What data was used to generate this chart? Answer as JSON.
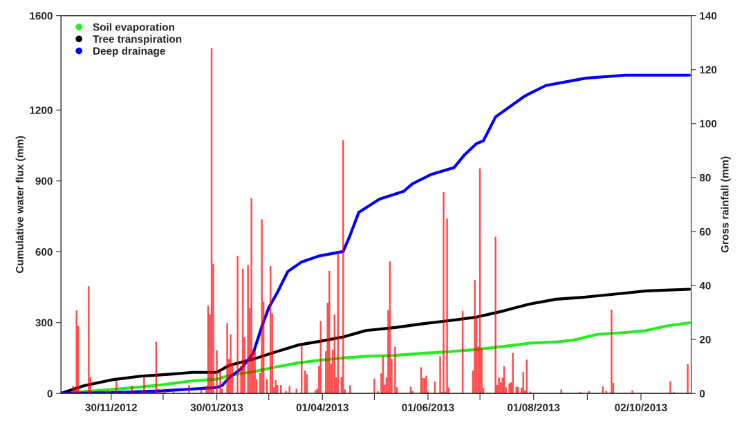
{
  "chart_data": {
    "type": "line",
    "xlabel": null,
    "ylabel": "Cumulative water flux (mm)",
    "y2label": "Gross rainfall (mm)",
    "xlim": [
      "2012-11-01",
      "2013-10-31"
    ],
    "xticks": [
      {
        "value": "2012-11-30",
        "label": "30/11/2012"
      },
      {
        "value": "2012-12-30",
        "label": null
      },
      {
        "value": "2013-01-30",
        "label": "30/01/2013"
      },
      {
        "value": "2013-03-01",
        "label": null
      },
      {
        "value": "2013-04-01",
        "label": "01/04/2013"
      },
      {
        "value": "2013-05-01",
        "label": null
      },
      {
        "value": "2013-06-01",
        "label": "01/06/2013"
      },
      {
        "value": "2013-07-01",
        "label": null
      },
      {
        "value": "2013-08-01",
        "label": "01/08/2013"
      },
      {
        "value": "2013-09-01",
        "label": null
      },
      {
        "value": "2013-10-02",
        "label": "02/10/2013"
      }
    ],
    "ylim": [
      0,
      1600
    ],
    "yticks": [
      0,
      300,
      600,
      900,
      1200,
      1600
    ],
    "y2lim": [
      0,
      140
    ],
    "y2ticks": [
      0,
      20,
      40,
      60,
      80,
      100,
      120,
      140
    ],
    "legend": "top left",
    "grid": false,
    "series": [
      {
        "name": "Soil evaporation",
        "color": "#22ee22",
        "x": [
          "2012-11-01",
          "2012-11-30",
          "2012-12-17",
          "2012-12-30",
          "2013-01-16",
          "2013-01-30",
          "2013-02-06",
          "2013-02-20",
          "2013-03-06",
          "2013-03-18",
          "2013-03-31",
          "2013-04-13",
          "2013-04-26",
          "2013-05-13",
          "2013-05-29",
          "2013-06-12",
          "2013-06-29",
          "2013-07-15",
          "2013-07-30",
          "2013-08-14",
          "2013-08-24",
          "2013-09-07",
          "2013-09-23",
          "2013-10-05",
          "2013-10-17",
          "2013-10-30"
        ],
        "values": [
          0,
          16,
          27,
          37,
          53,
          60,
          76,
          92,
          113,
          129,
          141,
          150,
          157,
          161,
          170,
          176,
          186,
          199,
          213,
          218,
          226,
          250,
          258,
          266,
          286,
          299
        ]
      },
      {
        "name": "Tree transpiration",
        "color": "#000000",
        "x": [
          "2012-11-01",
          "2012-11-14",
          "2012-11-30",
          "2012-12-17",
          "2012-12-30",
          "2013-01-16",
          "2013-01-30",
          "2013-02-06",
          "2013-02-20",
          "2013-03-06",
          "2013-03-18",
          "2013-03-31",
          "2013-04-13",
          "2013-04-26",
          "2013-05-13",
          "2013-05-29",
          "2013-06-12",
          "2013-06-29",
          "2013-07-15",
          "2013-07-30",
          "2013-08-14",
          "2013-08-31",
          "2013-09-23",
          "2013-10-05",
          "2013-10-30"
        ],
        "values": [
          0,
          32,
          57,
          73,
          79,
          89,
          89,
          118,
          145,
          178,
          205,
          221,
          239,
          266,
          279,
          295,
          307,
          323,
          350,
          379,
          399,
          408,
          425,
          434,
          441
        ]
      },
      {
        "name": "Deep drainage",
        "color": "#0000ff",
        "x": [
          "2012-11-01",
          "2012-11-30",
          "2012-12-30",
          "2013-01-30",
          "2013-02-02",
          "2013-02-06",
          "2013-02-13",
          "2013-02-20",
          "2013-02-25",
          "2013-03-01",
          "2013-03-06",
          "2013-03-12",
          "2013-03-20",
          "2013-03-30",
          "2013-04-13",
          "2013-04-17",
          "2013-04-22",
          "2013-05-04",
          "2013-05-18",
          "2013-05-23",
          "2013-06-03",
          "2013-06-16",
          "2013-06-22",
          "2013-06-29",
          "2013-07-03",
          "2013-07-10",
          "2013-07-27",
          "2013-08-08",
          "2013-08-31",
          "2013-09-23",
          "2013-10-30"
        ],
        "values": [
          0,
          3,
          11,
          25,
          33,
          65,
          104,
          170,
          283,
          363,
          428,
          516,
          557,
          582,
          601,
          670,
          767,
          823,
          856,
          888,
          928,
          956,
          1010,
          1058,
          1070,
          1171,
          1260,
          1304,
          1335,
          1348,
          1348
        ]
      },
      {
        "type": "bar",
        "axis": "y2",
        "color": "#ff0000",
        "x": [
          "2012-11-08",
          "2012-11-09",
          "2012-11-10",
          "2012-11-11",
          "2012-11-17",
          "2012-11-18",
          "2012-11-28",
          "2012-12-03",
          "2012-12-07",
          "2012-12-12",
          "2012-12-18",
          "2012-12-19",
          "2012-12-26",
          "2012-12-31",
          "2013-01-05",
          "2013-01-14",
          "2013-01-21",
          "2013-01-24",
          "2013-01-25",
          "2013-01-26",
          "2013-01-27",
          "2013-01-28",
          "2013-01-30",
          "2013-02-01",
          "2013-02-02",
          "2013-02-05",
          "2013-02-06",
          "2013-02-07",
          "2013-02-08",
          "2013-02-11",
          "2013-02-13",
          "2013-02-14",
          "2013-02-15",
          "2013-02-17",
          "2013-02-18",
          "2013-02-19",
          "2013-02-20",
          "2013-02-21",
          "2013-02-22",
          "2013-02-24",
          "2013-02-25",
          "2013-02-26",
          "2013-02-28",
          "2013-03-02",
          "2013-03-03",
          "2013-03-04",
          "2013-03-05",
          "2013-03-06",
          "2013-03-08",
          "2013-03-11",
          "2013-03-13",
          "2013-03-17",
          "2013-03-20",
          "2013-03-22",
          "2013-03-23",
          "2013-03-28",
          "2013-03-29",
          "2013-03-30",
          "2013-03-31",
          "2013-04-03",
          "2013-04-04",
          "2013-04-05",
          "2013-04-06",
          "2013-04-07",
          "2013-04-08",
          "2013-04-09",
          "2013-04-10",
          "2013-04-12",
          "2013-04-13",
          "2013-04-14",
          "2013-04-17",
          "2013-05-01",
          "2013-05-03",
          "2013-05-05",
          "2013-05-06",
          "2013-05-07",
          "2013-05-08",
          "2013-05-09",
          "2013-05-10",
          "2013-05-11",
          "2013-05-13",
          "2013-05-14",
          "2013-05-22",
          "2013-05-23",
          "2013-05-28",
          "2013-05-29",
          "2013-05-30",
          "2013-05-31",
          "2013-06-01",
          "2013-06-05",
          "2013-06-08",
          "2013-06-09",
          "2013-06-10",
          "2013-06-11",
          "2013-06-12",
          "2013-06-13",
          "2013-06-21",
          "2013-06-27",
          "2013-06-28",
          "2013-06-29",
          "2013-06-30",
          "2013-07-01",
          "2013-07-02",
          "2013-07-03",
          "2013-07-10",
          "2013-07-11",
          "2013-07-12",
          "2013-07-13",
          "2013-07-14",
          "2013-07-15",
          "2013-07-16",
          "2013-07-18",
          "2013-07-19",
          "2013-07-20",
          "2013-07-22",
          "2013-07-23",
          "2013-07-25",
          "2013-07-26",
          "2013-07-27",
          "2013-07-28",
          "2013-07-30",
          "2013-08-17",
          "2013-08-28",
          "2013-09-02",
          "2013-09-10",
          "2013-09-12",
          "2013-09-15",
          "2013-09-16",
          "2013-09-27",
          "2013-10-19",
          "2013-10-21",
          "2013-10-29"
        ],
        "values": [
          2.8,
          2,
          30.8,
          24.9,
          39.7,
          6,
          1.1,
          4.5,
          0.7,
          2.8,
          1.1,
          6,
          19.1,
          1.7,
          0.7,
          3.1,
          1.5,
          2.8,
          32.5,
          29.3,
          128,
          48,
          16,
          8.4,
          1.8,
          26.1,
          12.8,
          21.9,
          10.9,
          51,
          10.3,
          46.2,
          20.8,
          47.6,
          31.6,
          72.4,
          15.9,
          15.9,
          5.3,
          7.5,
          64.5,
          34,
          5.3,
          47.2,
          29.6,
          2.2,
          4.9,
          3.1,
          3.1,
          0.9,
          2.7,
          1.8,
          17.9,
          8.4,
          7.1,
          1.2,
          1.8,
          10.2,
          26.8,
          15.7,
          33.6,
          45.4,
          11,
          16.2,
          29.2,
          5.9,
          52,
          6.2,
          93.8,
          1.5,
          3,
          5.5,
          0.8,
          7.4,
          13.8,
          3.2,
          5.9,
          30.9,
          48.9,
          12.7,
          17.3,
          2.3,
          2.5,
          0.8,
          9.7,
          5.7,
          5.7,
          6.6,
          0.6,
          4.4,
          13.8,
          0.5,
          74.6,
          0.7,
          64.8,
          2.2,
          30.6,
          8.4,
          42.1,
          28.5,
          17.4,
          83.4,
          16.7,
          2,
          58.1,
          3.2,
          6,
          4.1,
          5.8,
          10.1,
          2.2,
          3.7,
          4.1,
          15,
          2.4,
          2.4,
          2,
          7.9,
          1.1,
          12.5,
          0.7,
          1.5,
          0.5,
          0.9,
          2.6,
          0.9,
          31,
          3.9,
          1.1,
          4.5,
          0.5,
          10.8
        ]
      }
    ]
  }
}
